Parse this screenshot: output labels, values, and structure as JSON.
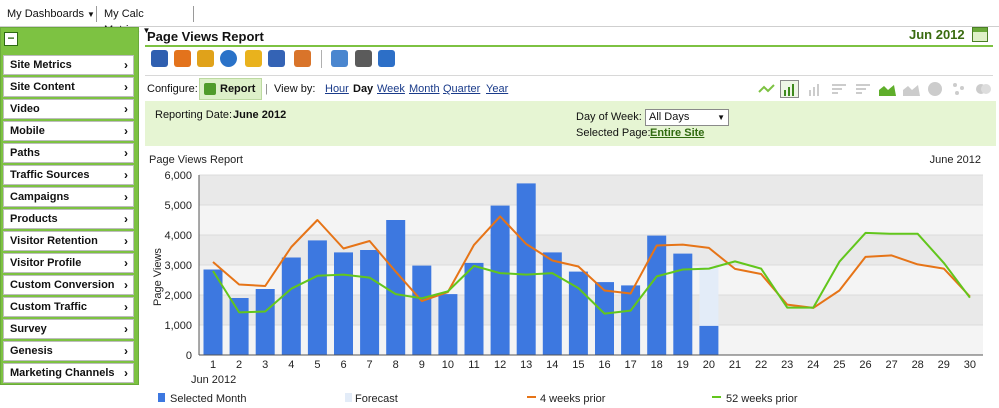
{
  "topbar": {
    "dashboards": "My Dashboards",
    "calc_metrics": "My Calc Metrics"
  },
  "nav": {
    "items": [
      {
        "label": "Site Metrics"
      },
      {
        "label": "Site Content"
      },
      {
        "label": "Video"
      },
      {
        "label": "Mobile"
      },
      {
        "label": "Paths"
      },
      {
        "label": "Traffic Sources"
      },
      {
        "label": "Campaigns"
      },
      {
        "label": "Products"
      },
      {
        "label": "Visitor Retention"
      },
      {
        "label": "Visitor Profile"
      },
      {
        "label": "Custom Conversion"
      },
      {
        "label": "Custom Traffic"
      },
      {
        "label": "Survey"
      },
      {
        "label": "Genesis"
      },
      {
        "label": "Marketing Channels"
      }
    ]
  },
  "header": {
    "title": "Page Views Report",
    "period": "Jun 2012"
  },
  "toolbar_icons": [
    "download-icon",
    "email-icon",
    "bookmark-icon",
    "dashboard-add-icon",
    "alert-icon",
    "stack-icon",
    "export-icon",
    "edit-icon",
    "print-icon",
    "new-window-icon"
  ],
  "configure": {
    "label": "Configure:",
    "report_button": "Report",
    "view_by_label": "View by:",
    "options": [
      "Hour",
      "Day",
      "Week",
      "Month",
      "Quarter",
      "Year"
    ],
    "active": "Day"
  },
  "chart_types": [
    "trend-line-icon",
    "bar-chart-icon",
    "stacked-bar-icon",
    "horizontal-bar-icon",
    "stacked-horizontal-icon",
    "area-icon",
    "stacked-area-icon",
    "pie-icon",
    "scatter-icon",
    "overlap-icon"
  ],
  "filters": {
    "reporting_date_label": "Reporting Date:",
    "reporting_date": "June 2012",
    "day_of_week_label": "Day of Week:",
    "day_of_week": "All Days",
    "selected_page_label": "Selected Page:",
    "selected_page": "Entire Site"
  },
  "colors": {
    "bar": "#3d78e0",
    "forecast": "#e3ecf8",
    "four_weeks_prior": "#e67417",
    "fifty_two_weeks_prior": "#62c61c",
    "nav_green": "#7dc242"
  },
  "chart_data": {
    "type": "bar",
    "title": "Page Views Report",
    "subtitle": "June 2012",
    "xlabel": "Jun 2012",
    "ylabel": "Page Views",
    "ylim": [
      0,
      6000
    ],
    "yticks": [
      "0",
      "1,000",
      "2,000",
      "3,000",
      "4,000",
      "5,000",
      "6,000"
    ],
    "categories": [
      "1",
      "2",
      "3",
      "4",
      "5",
      "6",
      "7",
      "8",
      "9",
      "10",
      "11",
      "12",
      "13",
      "14",
      "15",
      "16",
      "17",
      "18",
      "19",
      "20",
      "21",
      "22",
      "23",
      "24",
      "25",
      "26",
      "27",
      "28",
      "29",
      "30"
    ],
    "legend": [
      "Selected Month",
      "Forecast",
      "4 weeks prior",
      "52 weeks prior"
    ],
    "legend_position": "bottom",
    "series": [
      {
        "name": "Selected Month",
        "type": "bar",
        "values": [
          2850,
          1900,
          2200,
          3250,
          3820,
          3420,
          3500,
          4500,
          2980,
          2030,
          3070,
          4980,
          5720,
          3420,
          2780,
          2430,
          2320,
          3980,
          3380,
          970,
          null,
          null,
          null,
          null,
          null,
          null,
          null,
          null,
          null,
          null
        ]
      },
      {
        "name": "Forecast",
        "type": "bar",
        "values": [
          null,
          null,
          null,
          null,
          null,
          null,
          null,
          null,
          null,
          null,
          null,
          null,
          null,
          null,
          null,
          null,
          null,
          null,
          null,
          2950,
          null,
          null,
          null,
          null,
          null,
          null,
          null,
          null,
          null,
          null
        ]
      },
      {
        "name": "4 weeks prior",
        "type": "line",
        "values": [
          3100,
          2350,
          2300,
          3600,
          4500,
          3550,
          3800,
          2780,
          1800,
          2100,
          3670,
          4620,
          3700,
          3150,
          2950,
          2150,
          2050,
          3650,
          3680,
          3570,
          2870,
          2700,
          1680,
          1570,
          2150,
          3270,
          3320,
          3020,
          2880,
          1950
        ]
      },
      {
        "name": "52 weeks prior",
        "type": "line",
        "values": [
          2800,
          1420,
          1450,
          2210,
          2640,
          2680,
          2580,
          2030,
          1890,
          2120,
          2970,
          2730,
          2680,
          2730,
          2230,
          1380,
          1480,
          2620,
          2850,
          2880,
          3120,
          2880,
          1580,
          1580,
          3110,
          4070,
          4040,
          4040,
          3070,
          1910
        ]
      }
    ]
  }
}
